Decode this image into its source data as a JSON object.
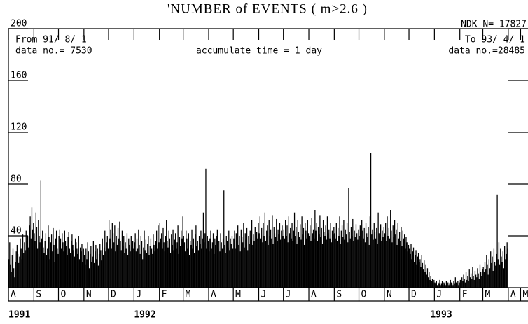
{
  "chart_data": {
    "type": "bar",
    "title": "'NUMBER of EVENTS ( m>2.6 )",
    "catalog_label": "NDK N= 17827",
    "from_label": "From 91/ 8/ 1",
    "from_count": "data no.= 7530",
    "accumulate_label": "accumulate time = 1 day",
    "to_label": "To 93/ 4/ 1",
    "to_count": "data no.=28485",
    "years": [
      "1991",
      "1992",
      "1993"
    ],
    "color": "#000000",
    "ylim": [
      0,
      200
    ],
    "yticks": [
      40,
      80,
      120,
      160,
      200
    ],
    "xlim": [
      0,
      633
    ],
    "xticks": [
      {
        "value": 0,
        "label": "A"
      },
      {
        "value": 31,
        "label": "S"
      },
      {
        "value": 61,
        "label": "O"
      },
      {
        "value": 92,
        "label": "N"
      },
      {
        "value": 122,
        "label": "D"
      },
      {
        "value": 153,
        "label": "J"
      },
      {
        "value": 184,
        "label": "F"
      },
      {
        "value": 213,
        "label": "M"
      },
      {
        "value": 244,
        "label": "A"
      },
      {
        "value": 274,
        "label": "M"
      },
      {
        "value": 305,
        "label": "J"
      },
      {
        "value": 335,
        "label": "J"
      },
      {
        "value": 366,
        "label": "A"
      },
      {
        "value": 397,
        "label": "S"
      },
      {
        "value": 427,
        "label": "O"
      },
      {
        "value": 458,
        "label": "N"
      },
      {
        "value": 488,
        "label": "D"
      },
      {
        "value": 519,
        "label": "J"
      },
      {
        "value": 550,
        "label": "F"
      },
      {
        "value": 578,
        "label": "M"
      },
      {
        "value": 609,
        "label": "A"
      },
      {
        "value": 624,
        "label": "M"
      }
    ],
    "values": [
      22,
      35,
      18,
      12,
      25,
      30,
      15,
      8,
      20,
      28,
      33,
      26,
      19,
      24,
      38,
      30,
      22,
      41,
      27,
      35,
      29,
      44,
      36,
      40,
      31,
      48,
      55,
      38,
      62,
      45,
      50,
      42,
      36,
      58,
      47,
      30,
      52,
      40,
      35,
      83,
      38,
      44,
      31,
      27,
      36,
      42,
      25,
      30,
      48,
      39,
      22,
      35,
      41,
      28,
      46,
      33,
      20,
      38,
      44,
      30,
      26,
      40,
      45,
      38,
      30,
      42,
      35,
      28,
      44,
      36,
      32,
      25,
      39,
      43,
      30,
      27,
      36,
      41,
      33,
      29,
      24,
      38,
      35,
      30,
      26,
      40,
      22,
      31,
      28,
      34,
      20,
      30,
      25,
      18,
      30,
      22,
      35,
      28,
      15,
      26,
      32,
      20,
      24,
      36,
      19,
      28,
      33,
      22,
      30,
      17,
      26,
      34,
      29,
      21,
      38,
      25,
      31,
      44,
      28,
      35,
      40,
      30,
      52,
      38,
      45,
      30,
      50,
      42,
      35,
      48,
      28,
      40,
      33,
      46,
      38,
      51,
      36,
      29,
      44,
      32,
      40,
      27,
      35,
      30,
      42,
      25,
      38,
      33,
      28,
      40,
      31,
      36,
      30,
      35,
      42,
      28,
      38,
      30,
      45,
      33,
      26,
      40,
      36,
      22,
      31,
      44,
      29,
      37,
      27,
      34,
      40,
      25,
      32,
      38,
      30,
      26,
      41,
      33,
      28,
      36,
      44,
      30,
      48,
      35,
      50,
      38,
      42,
      30,
      46,
      35,
      28,
      40,
      52,
      36,
      31,
      44,
      38,
      27,
      41,
      33,
      45,
      29,
      37,
      42,
      30,
      35,
      48,
      26,
      39,
      32,
      44,
      38,
      55,
      40,
      35,
      28,
      44,
      38,
      30,
      42,
      25,
      36,
      33,
      45,
      30,
      38,
      27,
      41,
      48,
      32,
      36,
      29,
      40,
      34,
      44,
      30,
      38,
      58,
      35,
      42,
      92,
      30,
      40,
      36,
      28,
      38,
      44,
      30,
      35,
      42,
      26,
      38,
      33,
      40,
      45,
      30,
      36,
      28,
      42,
      35,
      30,
      38,
      75,
      33,
      27,
      40,
      36,
      31,
      44,
      29,
      38,
      34,
      40,
      30,
      38,
      44,
      30,
      42,
      36,
      48,
      33,
      40,
      28,
      45,
      39,
      35,
      50,
      31,
      42,
      37,
      46,
      29,
      40,
      34,
      44,
      38,
      52,
      33,
      41,
      36,
      47,
      30,
      43,
      38,
      50,
      42,
      55,
      38,
      46,
      35,
      50,
      40,
      58,
      36,
      44,
      48,
      33,
      52,
      40,
      45,
      38,
      56,
      34,
      47,
      42,
      39,
      53,
      36,
      45,
      41,
      50,
      37,
      44,
      48,
      40,
      45,
      38,
      52,
      40,
      48,
      35,
      55,
      42,
      46,
      38,
      50,
      36,
      44,
      58,
      40,
      47,
      34,
      52,
      43,
      39,
      49,
      37,
      55,
      41,
      46,
      33,
      50,
      44,
      38,
      52,
      42,
      40,
      48,
      36,
      54,
      42,
      45,
      38,
      60,
      44,
      50,
      36,
      47,
      41,
      56,
      39,
      46,
      34,
      52,
      43,
      40,
      48,
      37,
      55,
      42,
      45,
      38,
      50,
      35,
      44,
      41,
      47,
      42,
      38,
      50,
      36,
      46,
      40,
      55,
      34,
      44,
      48,
      39,
      52,
      37,
      45,
      41,
      50,
      35,
      77,
      43,
      38,
      47,
      40,
      53,
      36,
      44,
      39,
      49,
      42,
      37,
      45,
      40,
      48,
      36,
      52,
      44,
      38,
      46,
      35,
      50,
      42,
      39,
      47,
      33,
      55,
      104,
      41,
      45,
      37,
      50,
      43,
      38,
      46,
      34,
      58,
      42,
      40,
      49,
      36,
      44,
      39,
      47,
      42,
      50,
      36,
      55,
      40,
      46,
      38,
      60,
      44,
      35,
      48,
      39,
      52,
      41,
      45,
      33,
      50,
      38,
      43,
      36,
      47,
      32,
      44,
      38,
      41,
      30,
      39,
      35,
      28,
      33,
      30,
      26,
      34,
      22,
      28,
      31,
      20,
      25,
      29,
      18,
      24,
      27,
      20,
      22,
      16,
      25,
      19,
      14,
      21,
      12,
      18,
      10,
      15,
      8,
      12,
      6,
      9,
      5,
      7,
      4,
      6,
      4,
      3,
      5,
      2,
      4,
      3,
      6,
      2,
      3,
      5,
      2,
      4,
      3,
      2,
      5,
      3,
      4,
      2,
      3,
      6,
      4,
      3,
      2,
      5,
      3,
      8,
      4,
      3,
      5,
      2,
      4,
      6,
      4,
      8,
      5,
      10,
      7,
      4,
      12,
      6,
      9,
      5,
      14,
      8,
      11,
      7,
      16,
      9,
      6,
      13,
      10,
      8,
      15,
      11,
      7,
      18,
      12,
      9,
      14,
      16,
      12,
      20,
      14,
      25,
      18,
      10,
      22,
      15,
      28,
      19,
      24,
      13,
      30,
      20,
      17,
      26,
      72,
      22,
      35,
      18,
      30,
      24,
      20,
      28,
      15,
      32,
      22,
      26,
      35,
      30
    ]
  }
}
